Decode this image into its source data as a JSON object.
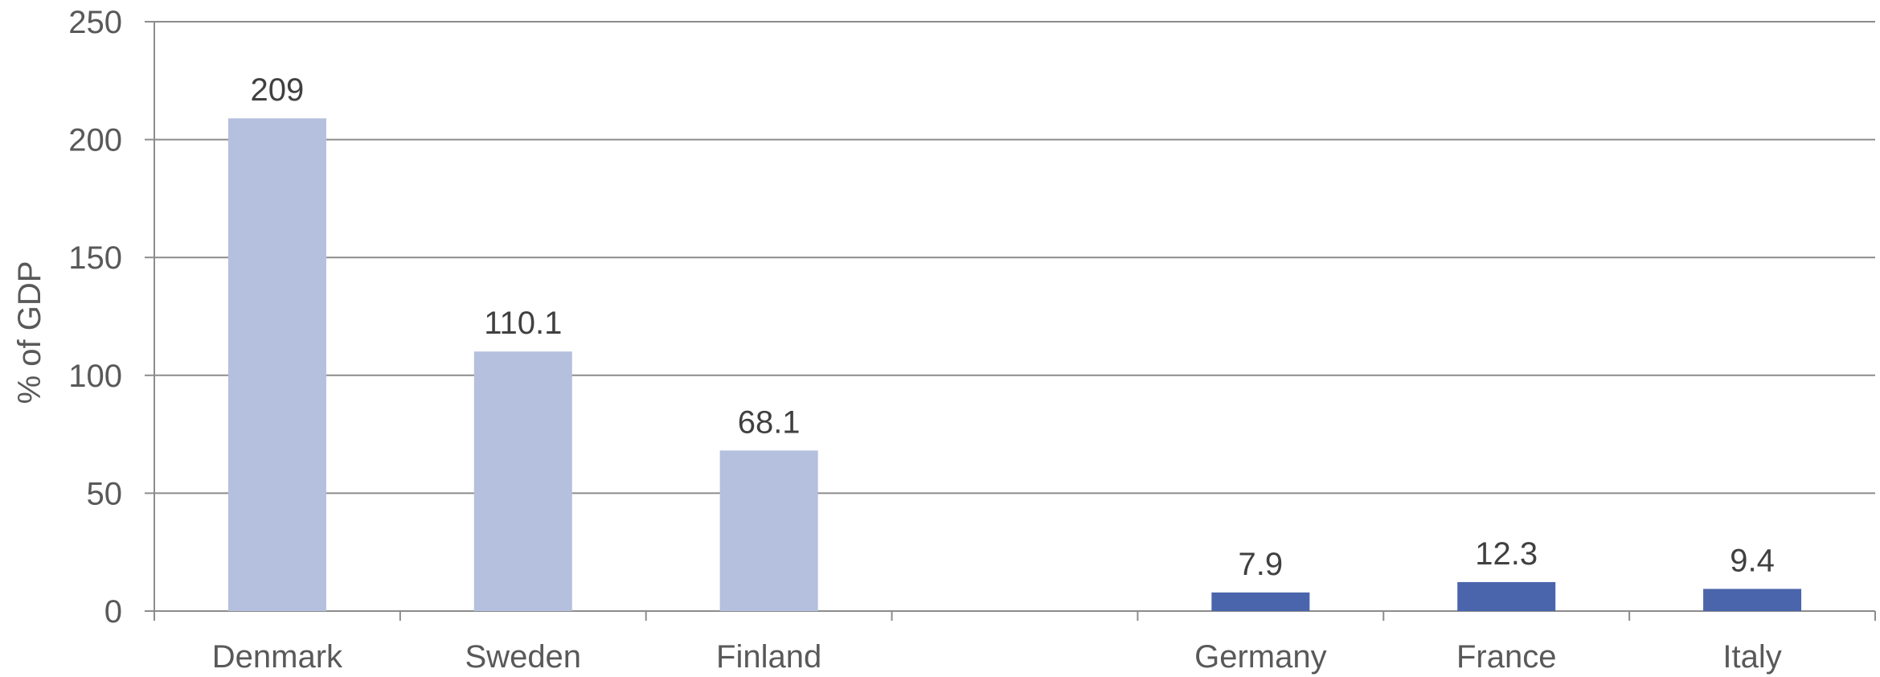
{
  "chart_data": {
    "type": "bar",
    "categories": [
      "Denmark",
      "Sweden",
      "Finland",
      "",
      "Germany",
      "France",
      "Italy"
    ],
    "values": [
      209,
      110.1,
      68.1,
      null,
      7.9,
      12.3,
      9.4
    ],
    "data_labels": [
      "209",
      "110.1",
      "68.1",
      "",
      "7.9",
      "12.3",
      "9.4"
    ],
    "bar_colors": [
      "#b4c0dd",
      "#b4c0dd",
      "#b4c0dd",
      null,
      "#4a65ac",
      "#4a65ac",
      "#4a65ac"
    ],
    "title": "",
    "xlabel": "",
    "ylabel": "% of GDP",
    "ylim": [
      0,
      250
    ],
    "yticks": [
      0,
      50,
      100,
      150,
      200,
      250
    ],
    "grid": true,
    "legend": "none",
    "colors": {
      "grid": "#8c8c8c",
      "axis": "#8c8c8c",
      "text": "#595959",
      "data_label_text": "#404040"
    }
  }
}
